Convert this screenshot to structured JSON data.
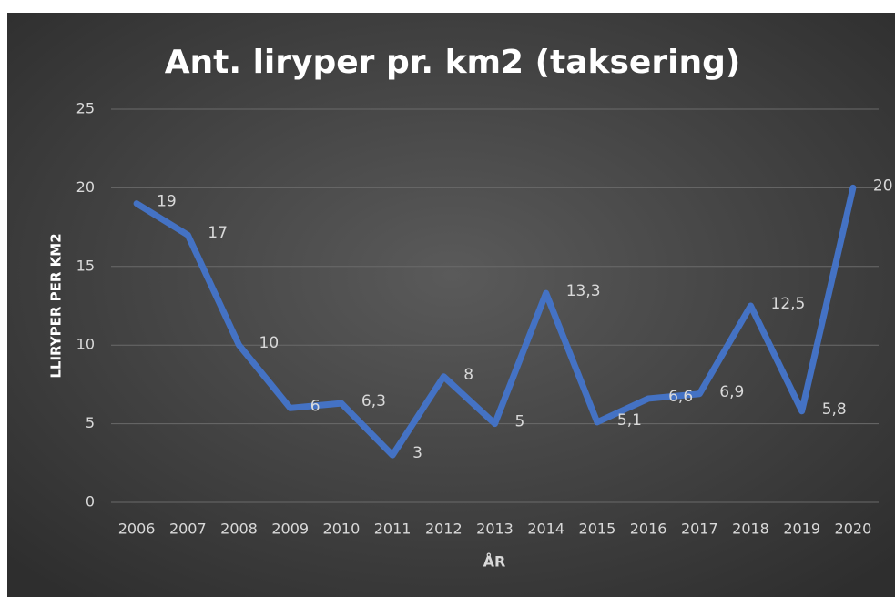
{
  "chart_data": {
    "type": "line",
    "title": "Ant. liryper pr. km2 (taksering)",
    "x_label": "ÅR",
    "y_label": "LLIRYPER PER KM2",
    "categories": [
      "2006",
      "2007",
      "2008",
      "2009",
      "2010",
      "2011",
      "2012",
      "2013",
      "2014",
      "2015",
      "2016",
      "2017",
      "2018",
      "2019",
      "2020"
    ],
    "series": [
      {
        "name": "Liryper",
        "color": "#4472c4",
        "values": [
          19,
          17,
          10,
          6,
          6.3,
          3,
          8,
          5,
          13.3,
          5.1,
          6.6,
          6.9,
          12.5,
          5.8,
          20
        ],
        "value_labels": [
          "19",
          "17",
          "10",
          "6",
          "6,3",
          "3",
          "8",
          "5",
          "13,3",
          "5,1",
          "6,6",
          "6,9",
          "12,5",
          "5,8",
          "20"
        ]
      }
    ],
    "ylim": [
      0,
      25
    ],
    "yticks": [
      0,
      5,
      10,
      15,
      20,
      25
    ],
    "grid": true
  }
}
